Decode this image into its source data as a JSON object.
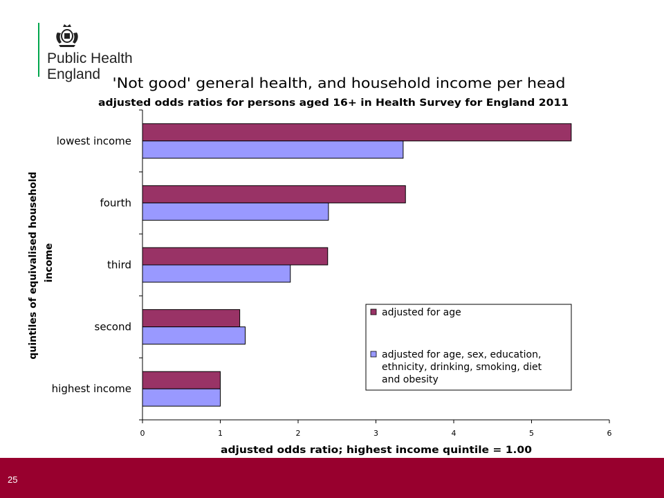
{
  "brand": {
    "name": "Public Health England",
    "name_line1": "Public Health",
    "name_line2": "England",
    "accent_color": "#00a64c",
    "crest_icon": "royal-crest-icon"
  },
  "footer": {
    "page_number": "25",
    "color": "#98002e"
  },
  "chart_data": {
    "type": "bar",
    "orientation": "horizontal",
    "title": "'Not good' general health, and household income per head",
    "subtitle": "adjusted odds ratios for persons aged 16+ in Health Survey for England 2011",
    "xlabel": "adjusted odds ratio; highest income quintile = 1.00",
    "ylabel": "quintiles of equivalised household income",
    "ylabel_lines": [
      "quintiles of equivalised household",
      "income"
    ],
    "categories": [
      "lowest income",
      "fourth",
      "third",
      "second",
      "highest income"
    ],
    "xlim": [
      0,
      6
    ],
    "xticks": [
      0,
      1,
      2,
      3,
      4,
      5,
      6
    ],
    "grid": false,
    "legend_position": "bottom-right",
    "series": [
      {
        "name": "adjusted for age",
        "name_lines": [
          "adjusted for age"
        ],
        "color": "#993366",
        "values": [
          5.51,
          3.38,
          2.38,
          1.25,
          1.0
        ]
      },
      {
        "name": "adjusted for age, sex, education, ethnicity, drinking, smoking, diet and obesity",
        "name_lines": [
          "adjusted for age, sex, education,",
          "ethnicity, drinking, smoking, diet",
          "and obesity"
        ],
        "color": "#9999ff",
        "values": [
          3.35,
          2.39,
          1.9,
          1.32,
          1.0
        ]
      }
    ]
  }
}
